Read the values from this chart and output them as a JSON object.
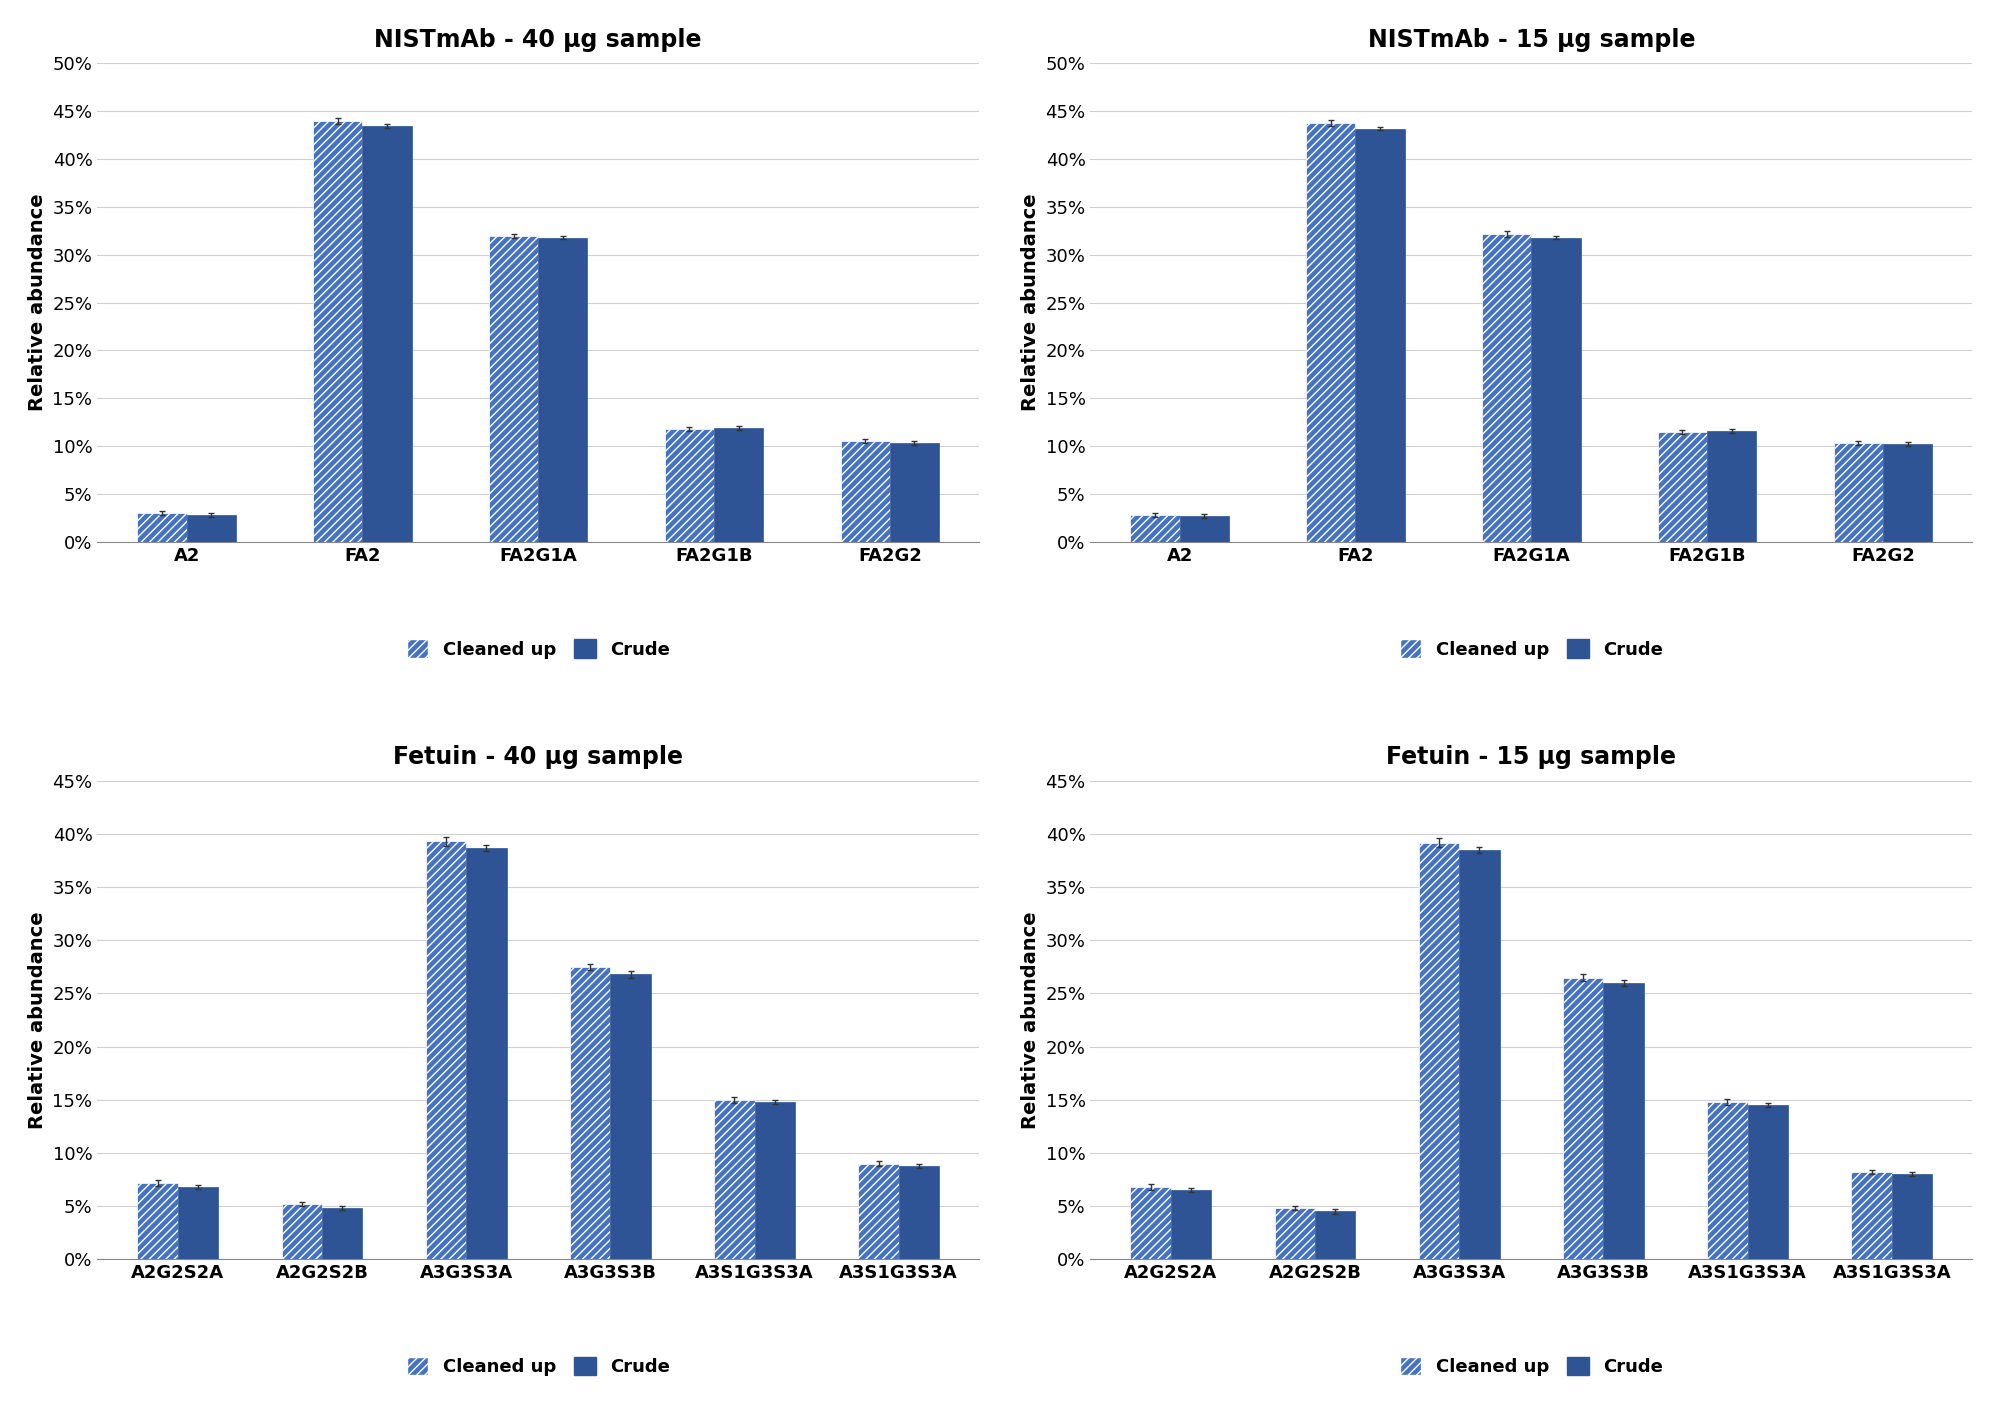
{
  "panels": [
    {
      "title": "NISTmAb - 40 μg sample",
      "categories": [
        "A2",
        "FA2",
        "FA2G1A",
        "FA2G1B",
        "FA2G2"
      ],
      "cleaned_up": [
        0.03,
        0.44,
        0.32,
        0.118,
        0.105
      ],
      "crude": [
        0.028,
        0.435,
        0.318,
        0.119,
        0.103
      ],
      "cleaned_up_err": [
        0.002,
        0.003,
        0.002,
        0.002,
        0.002
      ],
      "crude_err": [
        0.002,
        0.002,
        0.002,
        0.002,
        0.002
      ],
      "ylim": [
        0,
        0.5
      ],
      "yticks": [
        0.0,
        0.05,
        0.1,
        0.15,
        0.2,
        0.25,
        0.3,
        0.35,
        0.4,
        0.45,
        0.5
      ]
    },
    {
      "title": "NISTmAb - 15 μg sample",
      "categories": [
        "A2",
        "FA2",
        "FA2G1A",
        "FA2G1B",
        "FA2G2"
      ],
      "cleaned_up": [
        0.028,
        0.438,
        0.322,
        0.115,
        0.103
      ],
      "crude": [
        0.027,
        0.432,
        0.318,
        0.116,
        0.102
      ],
      "cleaned_up_err": [
        0.002,
        0.003,
        0.003,
        0.002,
        0.002
      ],
      "crude_err": [
        0.002,
        0.002,
        0.002,
        0.002,
        0.002
      ],
      "ylim": [
        0,
        0.5
      ],
      "yticks": [
        0.0,
        0.05,
        0.1,
        0.15,
        0.2,
        0.25,
        0.3,
        0.35,
        0.4,
        0.45,
        0.5
      ]
    },
    {
      "title": "Fetuin - 40 μg sample",
      "categories": [
        "A2G2S2A",
        "A2G2S2B",
        "A3G3S3A",
        "A3G3S3B",
        "A3S1G3S3A",
        "A3S1G3S3A"
      ],
      "cleaned_up": [
        0.072,
        0.052,
        0.393,
        0.275,
        0.15,
        0.09
      ],
      "crude": [
        0.068,
        0.048,
        0.387,
        0.268,
        0.148,
        0.088
      ],
      "cleaned_up_err": [
        0.003,
        0.002,
        0.004,
        0.003,
        0.003,
        0.002
      ],
      "crude_err": [
        0.002,
        0.002,
        0.003,
        0.003,
        0.002,
        0.002
      ],
      "ylim": [
        0,
        0.45
      ],
      "yticks": [
        0.0,
        0.05,
        0.1,
        0.15,
        0.2,
        0.25,
        0.3,
        0.35,
        0.4,
        0.45
      ]
    },
    {
      "title": "Fetuin - 15 μg sample",
      "categories": [
        "A2G2S2A",
        "A2G2S2B",
        "A3G3S3A",
        "A3G3S3B",
        "A3S1G3S3A",
        "A3S1G3S3A"
      ],
      "cleaned_up": [
        0.068,
        0.048,
        0.392,
        0.265,
        0.148,
        0.082
      ],
      "crude": [
        0.065,
        0.045,
        0.385,
        0.26,
        0.145,
        0.08
      ],
      "cleaned_up_err": [
        0.003,
        0.002,
        0.004,
        0.003,
        0.003,
        0.002
      ],
      "crude_err": [
        0.002,
        0.002,
        0.003,
        0.003,
        0.002,
        0.002
      ],
      "ylim": [
        0,
        0.45
      ],
      "yticks": [
        0.0,
        0.05,
        0.1,
        0.15,
        0.2,
        0.25,
        0.3,
        0.35,
        0.4,
        0.45
      ]
    }
  ],
  "bar_color_hatch": "#4472c4",
  "bar_color_solid": "#2e5496",
  "bar_width": 0.28,
  "ylabel": "Relative abundance",
  "legend_labels": [
    "Cleaned up",
    "Crude"
  ],
  "background_color": "#ffffff",
  "grid_color": "#d0d0d0",
  "title_fontsize": 17,
  "label_fontsize": 14,
  "tick_fontsize": 13,
  "legend_fontsize": 13
}
